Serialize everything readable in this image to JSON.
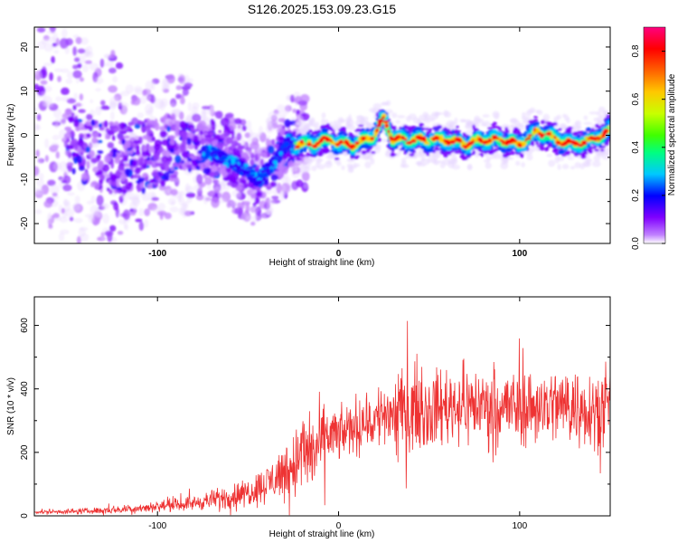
{
  "title": "S126.2025.153.09.23.G15",
  "chart_data": [
    {
      "type": "heatmap",
      "xlabel": "Height of straight line (km)",
      "ylabel": "Frequency (Hz)",
      "xlim": [
        -168,
        150
      ],
      "ylim": [
        -24.5,
        24.5
      ],
      "xticks": [
        -100,
        0,
        100
      ],
      "xtick_labels": [
        "-100",
        "0",
        "100"
      ],
      "yticks": [
        -20,
        -10,
        0,
        10,
        20
      ],
      "ytick_labels": [
        "-20",
        "-10",
        "0",
        "10",
        "20"
      ],
      "grid": false,
      "colorbar": {
        "label": "Normalized spectral amplitude",
        "range": [
          0,
          0.9
        ],
        "ticks": [
          0.0,
          0.2,
          0.4,
          0.6,
          0.8
        ],
        "tick_labels": [
          "0.0",
          "0.2",
          "0.4",
          "0.6",
          "0.8"
        ],
        "colormap": [
          "#ffffff",
          "#c080ff",
          "#8000ff",
          "#0000ff",
          "#00c8ff",
          "#00ff80",
          "#40ff00",
          "#c8ff00",
          "#ffc800",
          "#ff6000",
          "#ff0000",
          "#ff0080"
        ]
      },
      "ridge": {
        "x": [
          -168,
          -150,
          -130,
          -110,
          -90,
          -70,
          -55,
          -45,
          -35,
          -28,
          -22,
          -15,
          -5,
          0,
          10,
          20,
          25,
          30,
          40,
          50,
          60,
          70,
          80,
          90,
          100,
          110,
          120,
          130,
          140,
          150
        ],
        "y": [
          5,
          0,
          -5,
          -5,
          -2,
          -4,
          -7,
          -10,
          -6,
          -2,
          -2,
          -2,
          -1,
          -2,
          -2,
          0,
          4,
          -1,
          -1,
          -1,
          -1,
          -2,
          -1,
          -1,
          -2,
          1,
          -1,
          -2,
          -1,
          1
        ]
      }
    },
    {
      "type": "line",
      "xlabel": "Height of straight line (km)",
      "ylabel": "SNR (10 * v/v)",
      "xlim": [
        -168,
        150
      ],
      "ylim": [
        0,
        690
      ],
      "xticks": [
        -100,
        0,
        100
      ],
      "xtick_labels": [
        "-100",
        "0",
        "100"
      ],
      "yticks": [
        0,
        200,
        400,
        600
      ],
      "ytick_labels": [
        "0",
        "200",
        "400",
        "600"
      ],
      "grid": false,
      "color": "#ee3333",
      "envelope": {
        "x": [
          -168,
          -140,
          -120,
          -100,
          -80,
          -60,
          -50,
          -40,
          -30,
          -25,
          -20,
          -15,
          -10,
          -5,
          0,
          10,
          20,
          25,
          30,
          40,
          50,
          60,
          80,
          100,
          120,
          140,
          150
        ],
        "mean": [
          12,
          15,
          20,
          30,
          40,
          60,
          75,
          100,
          140,
          160,
          200,
          200,
          220,
          260,
          250,
          290,
          300,
          330,
          320,
          340,
          330,
          350,
          350,
          340,
          350,
          340,
          340
        ],
        "noise": [
          6,
          8,
          12,
          15,
          20,
          35,
          40,
          55,
          80,
          100,
          120,
          120,
          110,
          90,
          70,
          80,
          90,
          100,
          110,
          110,
          110,
          110,
          110,
          110,
          110,
          110,
          110
        ]
      }
    }
  ]
}
